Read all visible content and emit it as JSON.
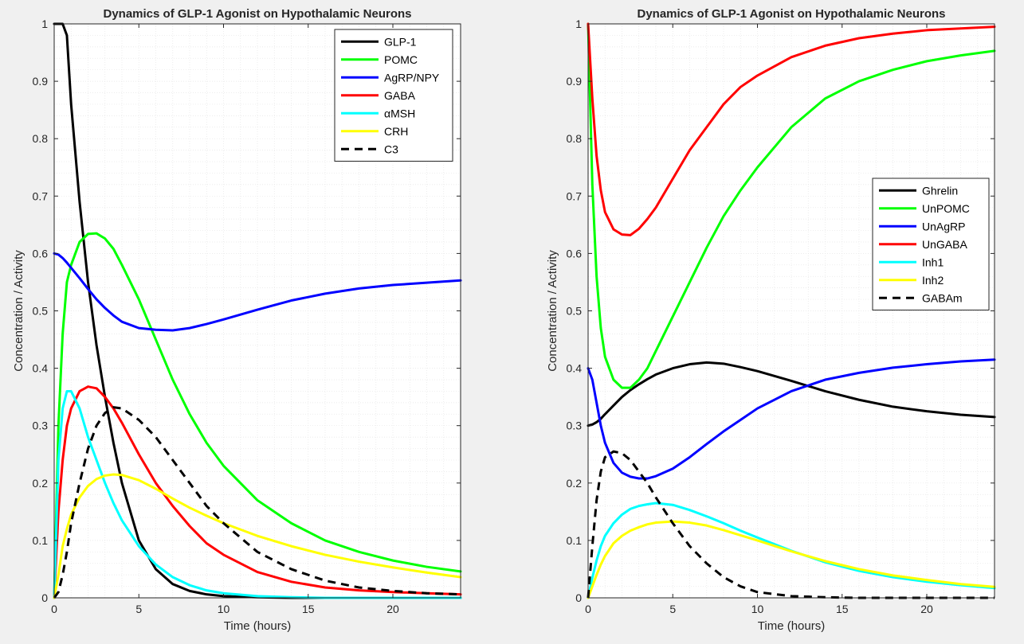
{
  "figure": {
    "background": "#f0f0f0"
  },
  "chart_data": [
    {
      "type": "line",
      "title": "Dynamics of GLP-1 Agonist on Hypothalamic Neurons",
      "xlabel": "Time (hours)",
      "ylabel": "Concentration / Activity",
      "xlim": [
        0,
        24
      ],
      "ylim": [
        0,
        1
      ],
      "xticks": [
        0,
        5,
        10,
        15,
        20
      ],
      "yticks": [
        0,
        0.1,
        0.2,
        0.3,
        0.4,
        0.5,
        0.6,
        0.7,
        0.8,
        0.9,
        1
      ],
      "grid": "minor",
      "legend_position": "top-right",
      "x": [
        0,
        0.25,
        0.5,
        0.75,
        1,
        1.5,
        2,
        2.5,
        3,
        3.5,
        4,
        5,
        6,
        7,
        8,
        9,
        10,
        12,
        14,
        16,
        18,
        20,
        22,
        24
      ],
      "series": [
        {
          "name": "GLP-1",
          "color": "#000000",
          "dash": false,
          "values": [
            1.0,
            1.0,
            1.0,
            0.98,
            0.86,
            0.69,
            0.55,
            0.44,
            0.35,
            0.27,
            0.2,
            0.1,
            0.05,
            0.024,
            0.012,
            0.006,
            0.003,
            0.001,
            0,
            0,
            0,
            0,
            0,
            0
          ]
        },
        {
          "name": "POMC",
          "color": "#00ff00",
          "dash": false,
          "values": [
            0.0,
            0.3,
            0.46,
            0.55,
            0.58,
            0.62,
            0.634,
            0.635,
            0.626,
            0.608,
            0.58,
            0.52,
            0.45,
            0.38,
            0.32,
            0.27,
            0.23,
            0.17,
            0.13,
            0.1,
            0.08,
            0.065,
            0.054,
            0.046
          ]
        },
        {
          "name": "AgRP/NPY",
          "color": "#0000ff",
          "dash": false,
          "values": [
            0.6,
            0.598,
            0.592,
            0.584,
            0.575,
            0.557,
            0.538,
            0.52,
            0.505,
            0.492,
            0.481,
            0.47,
            0.467,
            0.466,
            0.47,
            0.477,
            0.485,
            0.502,
            0.518,
            0.53,
            0.539,
            0.545,
            0.549,
            0.553
          ]
        },
        {
          "name": "GABA",
          "color": "#ff0000",
          "dash": false,
          "values": [
            0.0,
            0.15,
            0.24,
            0.3,
            0.33,
            0.36,
            0.368,
            0.365,
            0.35,
            0.33,
            0.305,
            0.25,
            0.2,
            0.16,
            0.125,
            0.095,
            0.075,
            0.045,
            0.028,
            0.018,
            0.013,
            0.01,
            0.008,
            0.006
          ]
        },
        {
          "name": "αMSH",
          "color": "#00ffff",
          "dash": false,
          "values": [
            0.0,
            0.24,
            0.33,
            0.36,
            0.36,
            0.33,
            0.28,
            0.24,
            0.2,
            0.165,
            0.135,
            0.09,
            0.058,
            0.036,
            0.022,
            0.013,
            0.008,
            0.003,
            0.001,
            0,
            0,
            0,
            0,
            0
          ]
        },
        {
          "name": "CRH",
          "color": "#ffff00",
          "dash": false,
          "values": [
            0.0,
            0.04,
            0.09,
            0.12,
            0.145,
            0.175,
            0.195,
            0.207,
            0.213,
            0.215,
            0.214,
            0.205,
            0.19,
            0.173,
            0.157,
            0.143,
            0.13,
            0.108,
            0.09,
            0.075,
            0.063,
            0.053,
            0.044,
            0.036
          ]
        },
        {
          "name": "C3",
          "color": "#000000",
          "dash": true,
          "values": [
            0.0,
            0.01,
            0.04,
            0.08,
            0.13,
            0.2,
            0.26,
            0.3,
            0.322,
            0.332,
            0.33,
            0.31,
            0.28,
            0.24,
            0.2,
            0.16,
            0.13,
            0.08,
            0.05,
            0.03,
            0.018,
            0.012,
            0.008,
            0.006
          ]
        }
      ]
    },
    {
      "type": "line",
      "title": "Dynamics of GLP-1 Agonist on Hypothalamic Neurons",
      "xlabel": "Time (hours)",
      "ylabel": "Concentration / Activity",
      "xlim": [
        0,
        24
      ],
      "ylim": [
        0,
        1
      ],
      "xticks": [
        0,
        5,
        10,
        15,
        20
      ],
      "yticks": [
        0,
        0.1,
        0.2,
        0.3,
        0.4,
        0.5,
        0.6,
        0.7,
        0.8,
        0.9,
        1
      ],
      "grid": "minor",
      "legend_position": "right",
      "x": [
        0,
        0.25,
        0.5,
        0.75,
        1,
        1.5,
        2,
        2.5,
        3,
        3.5,
        4,
        5,
        6,
        7,
        8,
        9,
        10,
        12,
        14,
        16,
        18,
        20,
        22,
        24
      ],
      "series": [
        {
          "name": "Ghrelin",
          "color": "#000000",
          "dash": false,
          "values": [
            0.3,
            0.302,
            0.306,
            0.312,
            0.32,
            0.335,
            0.35,
            0.362,
            0.372,
            0.381,
            0.389,
            0.4,
            0.407,
            0.41,
            0.408,
            0.402,
            0.395,
            0.378,
            0.36,
            0.345,
            0.333,
            0.325,
            0.319,
            0.315
          ]
        },
        {
          "name": "UnPOMC",
          "color": "#00ff00",
          "dash": false,
          "values": [
            1.0,
            0.72,
            0.56,
            0.47,
            0.42,
            0.38,
            0.366,
            0.366,
            0.38,
            0.4,
            0.43,
            0.49,
            0.55,
            0.61,
            0.665,
            0.71,
            0.75,
            0.82,
            0.87,
            0.9,
            0.92,
            0.935,
            0.945,
            0.953
          ]
        },
        {
          "name": "UnAgRP",
          "color": "#0000ff",
          "dash": false,
          "values": [
            0.4,
            0.38,
            0.34,
            0.3,
            0.27,
            0.235,
            0.218,
            0.211,
            0.208,
            0.208,
            0.212,
            0.225,
            0.245,
            0.268,
            0.29,
            0.31,
            0.33,
            0.36,
            0.38,
            0.392,
            0.401,
            0.407,
            0.412,
            0.415
          ]
        },
        {
          "name": "UnGABA",
          "color": "#ff0000",
          "dash": false,
          "values": [
            1.0,
            0.87,
            0.77,
            0.71,
            0.672,
            0.642,
            0.633,
            0.632,
            0.643,
            0.66,
            0.68,
            0.73,
            0.78,
            0.82,
            0.86,
            0.89,
            0.91,
            0.942,
            0.962,
            0.975,
            0.983,
            0.989,
            0.992,
            0.995
          ]
        },
        {
          "name": "Inh1",
          "color": "#00ffff",
          "dash": false,
          "values": [
            0.0,
            0.035,
            0.065,
            0.09,
            0.108,
            0.13,
            0.145,
            0.155,
            0.16,
            0.163,
            0.165,
            0.162,
            0.153,
            0.142,
            0.13,
            0.117,
            0.105,
            0.082,
            0.062,
            0.047,
            0.036,
            0.028,
            0.022,
            0.017
          ]
        },
        {
          "name": "Inh2",
          "color": "#ffff00",
          "dash": false,
          "values": [
            0.0,
            0.02,
            0.04,
            0.058,
            0.073,
            0.095,
            0.108,
            0.117,
            0.123,
            0.128,
            0.131,
            0.133,
            0.131,
            0.126,
            0.118,
            0.109,
            0.1,
            0.081,
            0.064,
            0.05,
            0.039,
            0.031,
            0.024,
            0.019
          ]
        },
        {
          "name": "GABAm",
          "color": "#000000",
          "dash": true,
          "values": [
            0.0,
            0.09,
            0.17,
            0.22,
            0.245,
            0.255,
            0.252,
            0.24,
            0.22,
            0.2,
            0.175,
            0.13,
            0.09,
            0.06,
            0.036,
            0.02,
            0.01,
            0.003,
            0.001,
            0,
            0,
            0,
            0,
            0
          ]
        }
      ]
    }
  ]
}
